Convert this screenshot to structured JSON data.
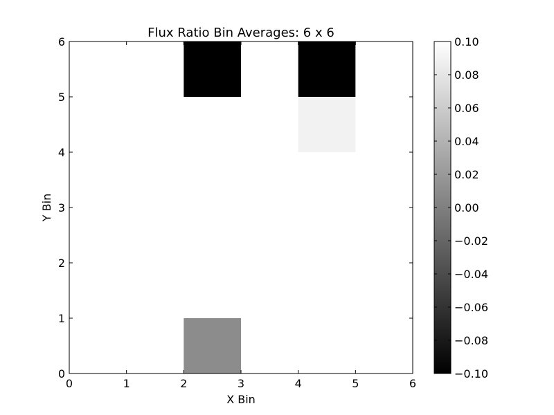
{
  "chart_data": {
    "type": "heatmap",
    "title": "Flux Ratio Bin Averages: 6 x 6",
    "xlabel": "X Bin",
    "ylabel": "Y Bin",
    "xlim": [
      0,
      6
    ],
    "ylim": [
      0,
      6
    ],
    "x_ticks": [
      "0",
      "1",
      "2",
      "3",
      "4",
      "5",
      "6"
    ],
    "y_ticks": [
      "0",
      "1",
      "2",
      "3",
      "4",
      "5",
      "6"
    ],
    "colormap": "gray",
    "vmin": -0.1,
    "vmax": 0.1,
    "colorbar_ticks": [
      "0.10",
      "0.08",
      "0.06",
      "0.04",
      "0.02",
      "0.00",
      "−0.02",
      "−0.04",
      "−0.06",
      "−0.08",
      "−0.10"
    ],
    "colorbar_values": [
      0.1,
      0.08,
      0.06,
      0.04,
      0.02,
      0.0,
      -0.02,
      -0.04,
      -0.06,
      -0.08,
      -0.1
    ],
    "cells": [
      {
        "x": 2,
        "y": 5,
        "value": -0.1
      },
      {
        "x": 4,
        "y": 5,
        "value": -0.1
      },
      {
        "x": 4,
        "y": 4,
        "value": 0.09
      },
      {
        "x": 2,
        "y": 0,
        "value": 0.01
      }
    ]
  }
}
